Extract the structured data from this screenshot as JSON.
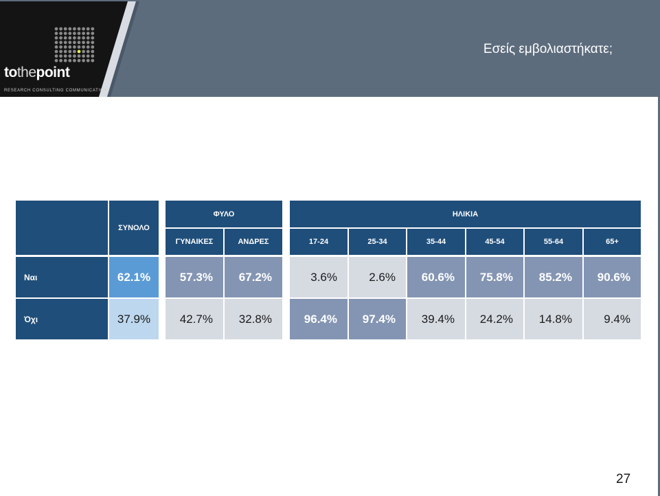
{
  "header": {
    "title": "Εσείς εμβολιαστήκατε;",
    "logo": {
      "word_part1": "to",
      "word_part2": "the",
      "word_part3": "point",
      "tagline": "RESEARCH  CONSULTING  COMMUNICATION"
    },
    "colors": {
      "banner": "#5d6c7d",
      "logo_bg": "#141414",
      "accent": "#e6f04c"
    }
  },
  "table": {
    "groups": {
      "total": "ΣΥΝΟΛΟ",
      "gender": "ΦΥΛΟ",
      "age": "ΗΛΙΚΙΑ"
    },
    "columns": [
      "ΓΥΝΑΙΚΕΣ",
      "ΑΝΔΡΕΣ",
      "17-24",
      "25-34",
      "35-44",
      "45-54",
      "55-64",
      "65+"
    ],
    "rows": [
      {
        "label": "Ναι",
        "values": [
          "62.1%",
          "57.3%",
          "67.2%",
          "3.6%",
          "2.6%",
          "60.6%",
          "75.8%",
          "85.2%",
          "90.6%"
        ]
      },
      {
        "label": "Όχι",
        "values": [
          "37.9%",
          "42.7%",
          "32.8%",
          "96.4%",
          "97.4%",
          "39.4%",
          "24.2%",
          "14.8%",
          "9.4%"
        ]
      }
    ],
    "colors": {
      "header": "#1f4e7a",
      "highlight": "#8495b3",
      "light": "#d6dbe2",
      "total_hi": "#5b9bd5",
      "total_lo": "#bdd7ee"
    }
  },
  "footer": {
    "page_number": "27"
  }
}
